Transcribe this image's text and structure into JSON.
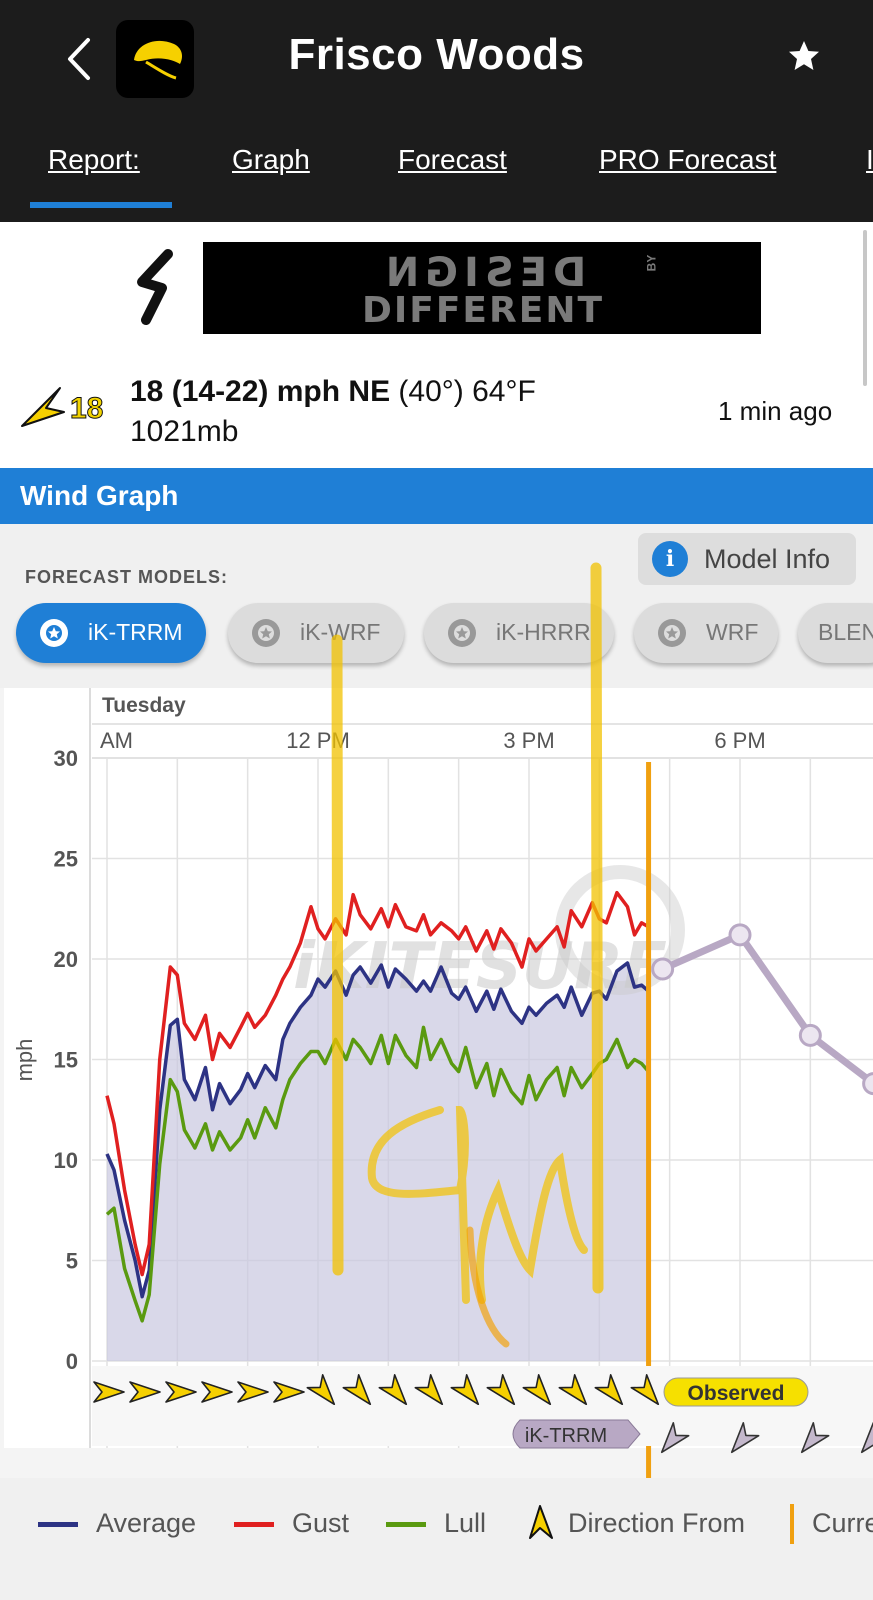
{
  "header": {
    "title": "Frisco Woods"
  },
  "tabs": [
    {
      "label": "Report:"
    },
    {
      "label": "Graph"
    },
    {
      "label": "Forecast"
    },
    {
      "label": "PRO Forecast"
    },
    {
      "label": "I"
    }
  ],
  "ad": {
    "line1": "DESIGN",
    "by": "BY",
    "line2": "DIFFERENT"
  },
  "conditions": {
    "speed_badge": "18",
    "summary_bold": "18 (14-22) mph NE",
    "summary_rest": " (40°) 64°F",
    "pressure": "1021mb",
    "updated": "1 min ago"
  },
  "wind_graph": {
    "title": "Wind Graph",
    "forecast_models_label": "FORECAST MODELS:",
    "model_info_label": "Model Info",
    "models": [
      {
        "label": "iK-TRRM",
        "active": true
      },
      {
        "label": "iK-WRF",
        "active": false
      },
      {
        "label": "iK-HRRR",
        "active": false
      },
      {
        "label": "WRF",
        "active": false
      },
      {
        "label": "BLEN",
        "active": false
      }
    ]
  },
  "chart_data": {
    "type": "line",
    "day_label": "Tuesday",
    "x_tick_labels": [
      "AM",
      "12 PM",
      "3 PM",
      "6 PM"
    ],
    "ylabel": "mph",
    "ylim": [
      0,
      30
    ],
    "y_ticks": [
      0,
      5,
      10,
      15,
      20,
      25,
      30
    ],
    "grid": true,
    "x_hours_range": [
      9.0,
      19.0
    ],
    "current_time_hours": 16.7,
    "watermark": "iKITESURF",
    "series": [
      {
        "name": "Average",
        "color": "#2d3384",
        "x": [
          9.0,
          9.1,
          9.25,
          9.4,
          9.5,
          9.6,
          9.75,
          9.9,
          10.0,
          10.1,
          10.25,
          10.4,
          10.5,
          10.6,
          10.75,
          10.9,
          11.0,
          11.1,
          11.25,
          11.4,
          11.5,
          11.6,
          11.75,
          11.9,
          12.0,
          12.1,
          12.25,
          12.4,
          12.5,
          12.6,
          12.75,
          12.9,
          13.0,
          13.1,
          13.25,
          13.4,
          13.5,
          13.6,
          13.75,
          13.9,
          14.0,
          14.1,
          14.25,
          14.4,
          14.5,
          14.6,
          14.75,
          14.9,
          15.0,
          15.1,
          15.25,
          15.4,
          15.5,
          15.6,
          15.75,
          15.9,
          16.0,
          16.1,
          16.25,
          16.4,
          16.5,
          16.6,
          16.7
        ],
        "values": [
          10.3,
          9.5,
          7.0,
          5.0,
          3.2,
          4.5,
          12.5,
          16.7,
          17.0,
          14.0,
          13.0,
          14.6,
          12.5,
          13.8,
          12.8,
          13.5,
          14.3,
          13.6,
          14.7,
          14.0,
          16.0,
          16.8,
          17.6,
          18.2,
          19.0,
          18.6,
          19.4,
          18.2,
          19.2,
          19.6,
          18.8,
          19.7,
          18.6,
          19.5,
          19.0,
          18.4,
          18.9,
          18.4,
          19.6,
          18.3,
          18.0,
          18.6,
          17.4,
          18.4,
          17.5,
          18.5,
          17.4,
          16.8,
          17.6,
          17.2,
          17.8,
          18.2,
          17.6,
          18.6,
          17.2,
          18.3,
          18.4,
          18.0,
          19.4,
          19.8,
          18.6,
          18.7,
          18.4
        ]
      },
      {
        "name": "Gust",
        "color": "#e02020",
        "x": [
          9.0,
          9.1,
          9.25,
          9.4,
          9.5,
          9.6,
          9.75,
          9.9,
          10.0,
          10.1,
          10.25,
          10.4,
          10.5,
          10.6,
          10.75,
          10.9,
          11.0,
          11.1,
          11.25,
          11.4,
          11.5,
          11.6,
          11.75,
          11.9,
          12.0,
          12.1,
          12.25,
          12.4,
          12.5,
          12.6,
          12.75,
          12.9,
          13.0,
          13.1,
          13.25,
          13.4,
          13.5,
          13.6,
          13.75,
          13.9,
          14.0,
          14.1,
          14.25,
          14.4,
          14.5,
          14.6,
          14.75,
          14.9,
          15.0,
          15.1,
          15.25,
          15.4,
          15.5,
          15.6,
          15.75,
          15.9,
          16.0,
          16.1,
          16.25,
          16.4,
          16.5,
          16.6,
          16.7
        ],
        "values": [
          13.2,
          11.8,
          8.5,
          5.8,
          4.3,
          5.8,
          15.0,
          19.6,
          19.2,
          16.8,
          16.0,
          17.2,
          15.0,
          16.3,
          15.6,
          16.6,
          17.3,
          16.6,
          17.2,
          18.2,
          19.0,
          19.6,
          20.8,
          22.6,
          21.5,
          21.0,
          22.0,
          21.2,
          23.2,
          22.2,
          21.5,
          22.5,
          21.6,
          22.7,
          21.6,
          21.4,
          22.2,
          21.2,
          21.8,
          21.4,
          21.0,
          21.6,
          20.4,
          21.4,
          20.5,
          21.5,
          20.8,
          19.6,
          21.0,
          20.4,
          21.0,
          21.6,
          20.6,
          22.4,
          21.6,
          22.8,
          22.0,
          21.8,
          23.3,
          22.6,
          21.2,
          21.8,
          21.6
        ]
      },
      {
        "name": "Lull",
        "color": "#5a9a10",
        "x": [
          9.0,
          9.1,
          9.25,
          9.4,
          9.5,
          9.6,
          9.75,
          9.9,
          10.0,
          10.1,
          10.25,
          10.4,
          10.5,
          10.6,
          10.75,
          10.9,
          11.0,
          11.1,
          11.25,
          11.4,
          11.5,
          11.6,
          11.75,
          11.9,
          12.0,
          12.1,
          12.25,
          12.4,
          12.5,
          12.6,
          12.75,
          12.9,
          13.0,
          13.1,
          13.25,
          13.4,
          13.5,
          13.6,
          13.75,
          13.9,
          14.0,
          14.1,
          14.25,
          14.4,
          14.5,
          14.6,
          14.75,
          14.9,
          15.0,
          15.1,
          15.25,
          15.4,
          15.5,
          15.6,
          15.75,
          15.9,
          16.0,
          16.1,
          16.25,
          16.4,
          16.5,
          16.6,
          16.7
        ],
        "values": [
          7.3,
          7.6,
          4.6,
          3.0,
          2.0,
          3.3,
          9.8,
          14.0,
          13.4,
          11.5,
          10.6,
          11.8,
          10.5,
          11.4,
          10.5,
          11.1,
          12.0,
          11.1,
          12.6,
          11.6,
          13.0,
          14.0,
          14.8,
          15.4,
          15.4,
          14.8,
          16.0,
          15.0,
          16.0,
          15.6,
          14.8,
          16.2,
          14.8,
          16.2,
          15.2,
          14.6,
          16.6,
          15.0,
          16.0,
          14.8,
          14.4,
          15.6,
          13.6,
          14.8,
          13.2,
          14.5,
          13.4,
          12.8,
          14.2,
          13.0,
          14.0,
          14.6,
          13.2,
          14.6,
          13.6,
          14.3,
          14.8,
          15.0,
          16.0,
          14.6,
          15.0,
          14.8,
          14.4
        ]
      },
      {
        "name": "iK-TRRM",
        "color": "#b8a8c4",
        "x": [
          16.9,
          18.0,
          19.0,
          19.9
        ],
        "values": [
          19.5,
          21.2,
          16.2,
          13.8
        ]
      }
    ],
    "direction_labels": [
      "Observed",
      "iK-TRRM"
    ],
    "legend": [
      "Average",
      "Gust",
      "Lull",
      "Direction From",
      "Curre"
    ]
  }
}
